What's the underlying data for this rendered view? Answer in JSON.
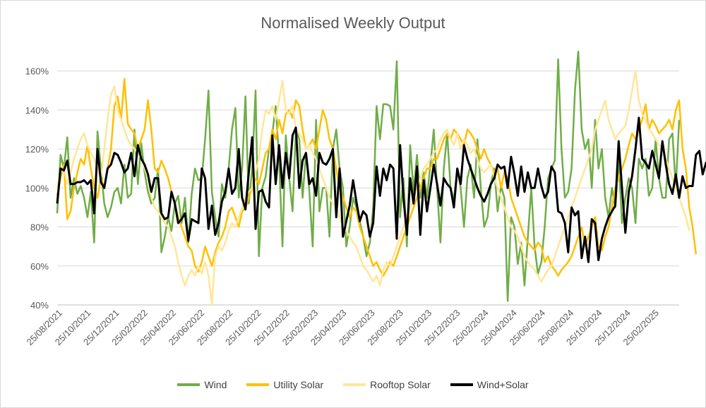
{
  "chart_data": {
    "type": "line",
    "title": "Normalised Weekly Output",
    "xlabel": "",
    "ylabel": "",
    "ylim": [
      0.4,
      1.7
    ],
    "ytick_labels": [
      "40%",
      "60%",
      "80%",
      "100%",
      "120%",
      "140%",
      "160%"
    ],
    "x_tick_labels": [
      "25/08/2021",
      "25/10/2021",
      "25/12/2021",
      "25/02/2022",
      "25/04/2022",
      "25/06/2022",
      "25/08/2022",
      "25/10/2022",
      "25/12/2022",
      "25/02/2023",
      "25/04/2023",
      "25/06/2023",
      "25/08/2023",
      "25/10/2023",
      "25/12/2023",
      "25/02/2024",
      "25/04/2024",
      "25/06/2024",
      "25/08/2024",
      "25/10/2024",
      "25/12/2024",
      "25/02/2025"
    ],
    "grid": "horizontal",
    "legend_position": "bottom",
    "series": [
      {
        "name": "Wind",
        "color": "#70ad47",
        "values": [
          0.87,
          1.17,
          1.1,
          1.26,
          0.95,
          1.05,
          0.97,
          1.01,
          0.95,
          0.85,
          0.98,
          0.72,
          1.29,
          1.1,
          0.92,
          0.85,
          0.9,
          0.98,
          1.0,
          0.92,
          1.12,
          0.95,
          0.97,
          1.3,
          1.02,
          1.23,
          1.08,
          0.98,
          0.92,
          0.95,
          1.1,
          0.67,
          0.75,
          0.85,
          0.78,
          0.92,
          0.96,
          0.82,
          0.95,
          0.72,
          0.97,
          1.1,
          1.04,
          1.05,
          1.25,
          1.5,
          0.98,
          0.85,
          0.75,
          1.02,
          0.95,
          1.1,
          1.3,
          1.41,
          0.95,
          1.1,
          1.47,
          0.92,
          1.1,
          1.5,
          0.65,
          1.0,
          1.06,
          1.2,
          1.28,
          1.42,
          1.15,
          0.7,
          1.27,
          1.05,
          0.88,
          1.3,
          1.25,
          0.95,
          1.18,
          0.98,
          0.7,
          1.35,
          0.88,
          1.0,
          1.0,
          0.75,
          1.2,
          1.3,
          1.1,
          1.0,
          0.7,
          0.8,
          0.95,
          0.9,
          0.83,
          0.75,
          0.65,
          0.72,
          0.9,
          1.42,
          1.25,
          1.43,
          1.43,
          1.42,
          1.3,
          1.65,
          0.85,
          1.05,
          0.7,
          1.22,
          0.98,
          1.17,
          0.95,
          1.08,
          0.95,
          1.12,
          1.3,
          1.0,
          0.72,
          1.1,
          1.28,
          1.0,
          0.94,
          1.1,
          1.0,
          0.8,
          1.05,
          1.12,
          0.95,
          1.25,
          1.0,
          0.8,
          0.85,
          1.02,
          1.1,
          0.88,
          1.01,
          0.95,
          0.42,
          0.85,
          0.8,
          0.61,
          0.72,
          0.5,
          0.75,
          1.0,
          0.7,
          0.56,
          0.62,
          0.8,
          1.05,
          1.1,
          1.14,
          1.66,
          1.2,
          0.95,
          0.98,
          1.1,
          1.5,
          1.7,
          1.3,
          1.2,
          1.25,
          1.0,
          1.35,
          1.1,
          1.2,
          0.95,
          0.85,
          1.0,
          0.9,
          1.15,
          0.82,
          0.95,
          1.05,
          1.0,
          0.82,
          1.15,
          1.1,
          1.15,
          0.96,
          1.0,
          1.25,
          1.05,
          0.95,
          0.95,
          1.25,
          1.28,
          1.0,
          1.35
        ]
      },
      {
        "name": "Utility Solar",
        "color": "#ffc000",
        "values": [
          0.96,
          1.05,
          1.12,
          0.84,
          0.88,
          1.0,
          1.08,
          1.15,
          1.12,
          1.22,
          1.1,
          1.0,
          0.95,
          1.05,
          1.0,
          1.1,
          1.2,
          1.42,
          1.47,
          1.35,
          1.56,
          1.33,
          1.3,
          1.28,
          1.2,
          1.25,
          1.3,
          1.45,
          1.3,
          1.1,
          1.08,
          1.14,
          1.1,
          1.05,
          0.98,
          0.92,
          0.85,
          0.8,
          0.75,
          0.7,
          0.68,
          0.6,
          0.57,
          0.62,
          0.7,
          0.65,
          0.6,
          0.67,
          0.72,
          0.75,
          0.8,
          0.88,
          0.9,
          0.85,
          0.8,
          0.88,
          0.9,
          0.95,
          1.0,
          1.05,
          1.02,
          1.1,
          1.18,
          1.2,
          1.3,
          1.25,
          1.35,
          1.28,
          1.38,
          1.4,
          1.36,
          1.45,
          1.42,
          1.3,
          1.2,
          1.22,
          1.25,
          1.2,
          1.3,
          1.4,
          1.35,
          1.25,
          1.2,
          1.1,
          1.0,
          0.95,
          0.9,
          0.85,
          0.9,
          0.88,
          0.8,
          0.75,
          0.7,
          0.65,
          0.6,
          0.62,
          0.58,
          0.55,
          0.58,
          0.62,
          0.6,
          0.65,
          0.7,
          0.75,
          0.8,
          0.85,
          0.9,
          0.95,
          1.0,
          1.05,
          1.1,
          1.1,
          1.15,
          1.15,
          1.2,
          1.25,
          1.28,
          1.25,
          1.3,
          1.28,
          1.25,
          1.22,
          1.3,
          1.28,
          1.25,
          1.2,
          1.15,
          1.2,
          1.15,
          1.12,
          1.08,
          1.1,
          1.0,
          1.08,
          1.05,
          0.95,
          0.9,
          0.85,
          0.8,
          0.75,
          0.72,
          0.7,
          0.68,
          0.72,
          0.7,
          0.62,
          0.65,
          0.6,
          0.58,
          0.55,
          0.58,
          0.6,
          0.62,
          0.65,
          0.7,
          0.75,
          0.8,
          0.7,
          0.75,
          0.8,
          0.85,
          0.7,
          0.68,
          0.75,
          0.8,
          0.9,
          1.0,
          1.05,
          1.1,
          1.15,
          1.22,
          1.28,
          1.25,
          1.3,
          1.35,
          1.43,
          1.3,
          1.35,
          1.32,
          1.28,
          1.3,
          1.32,
          1.35,
          1.3,
          1.4,
          1.45,
          1.2,
          1.1,
          0.9,
          0.8,
          0.66
        ]
      },
      {
        "name": "Rooftop Solar",
        "color": "#ffe699",
        "values": [
          1.0,
          1.08,
          1.1,
          1.02,
          1.08,
          1.15,
          1.2,
          1.25,
          1.28,
          1.22,
          1.18,
          1.15,
          1.1,
          1.05,
          1.2,
          1.35,
          1.48,
          1.52,
          1.4,
          1.35,
          1.3,
          1.25,
          1.22,
          1.2,
          1.18,
          1.15,
          1.1,
          1.05,
          0.95,
          0.9,
          0.88,
          0.85,
          0.82,
          0.8,
          0.75,
          0.7,
          0.62,
          0.55,
          0.5,
          0.55,
          0.58,
          0.55,
          0.6,
          0.56,
          0.62,
          0.55,
          0.4,
          0.65,
          0.7,
          0.68,
          0.72,
          0.78,
          0.82,
          0.8,
          0.85,
          0.9,
          0.95,
          0.98,
          1.0,
          1.08,
          1.15,
          1.3,
          1.4,
          1.38,
          1.42,
          1.35,
          1.45,
          1.55,
          1.4,
          1.38,
          1.42,
          1.3,
          1.28,
          1.25,
          1.2,
          1.22,
          1.18,
          1.15,
          1.1,
          1.05,
          1.0,
          0.95,
          0.92,
          0.9,
          0.85,
          0.8,
          0.78,
          0.75,
          0.72,
          0.7,
          0.65,
          0.6,
          0.58,
          0.55,
          0.52,
          0.55,
          0.5,
          0.58,
          0.62,
          0.6,
          0.65,
          0.7,
          0.75,
          0.8,
          0.85,
          0.9,
          0.95,
          1.0,
          1.05,
          1.1,
          1.12,
          1.15,
          1.18,
          1.2,
          1.25,
          1.28,
          1.3,
          1.25,
          1.22,
          1.28,
          1.2,
          1.25,
          1.22,
          1.18,
          1.2,
          1.15,
          1.1,
          1.08,
          1.1,
          1.12,
          1.05,
          1.0,
          0.95,
          0.9,
          0.85,
          0.8,
          0.78,
          0.75,
          0.7,
          0.65,
          0.62,
          0.6,
          0.58,
          0.55,
          0.52,
          0.55,
          0.58,
          0.6,
          0.65,
          0.7,
          0.75,
          0.8,
          0.85,
          0.9,
          0.95,
          1.0,
          1.05,
          1.1,
          1.15,
          1.2,
          1.3,
          1.35,
          1.4,
          1.45,
          1.35,
          1.3,
          1.25,
          1.28,
          1.3,
          1.32,
          1.4,
          1.5,
          1.6,
          1.45,
          1.38,
          1.35,
          1.3,
          1.28,
          1.25,
          1.22,
          1.2,
          1.15,
          1.1,
          1.05,
          1.0,
          0.95,
          0.9,
          0.85,
          0.78
        ]
      },
      {
        "name": "Wind+Solar",
        "color": "#000000",
        "values": [
          0.92,
          1.1,
          1.09,
          1.14,
          1.02,
          1.02,
          1.03,
          1.03,
          1.04,
          1.02,
          1.04,
          0.87,
          1.2,
          1.03,
          1.0,
          1.1,
          1.12,
          1.18,
          1.17,
          1.13,
          1.08,
          1.1,
          1.18,
          1.06,
          1.22,
          1.15,
          1.12,
          1.07,
          0.98,
          1.05,
          1.05,
          0.87,
          0.84,
          0.85,
          0.98,
          0.92,
          0.82,
          0.84,
          0.87,
          0.73,
          0.84,
          0.83,
          0.82,
          1.1,
          1.05,
          0.79,
          0.91,
          0.76,
          0.82,
          0.93,
          0.98,
          1.1,
          0.97,
          1.0,
          1.2,
          0.95,
          0.89,
          1.08,
          1.26,
          0.79,
          0.98,
          0.99,
          0.93,
          0.9,
          1.27,
          1.02,
          1.22,
          1.0,
          1.18,
          1.05,
          1.27,
          1.31,
          1.0,
          1.14,
          1.18,
          1.02,
          1.05,
          0.96,
          1.18,
          1.13,
          1.12,
          1.15,
          1.2,
          0.85,
          1.1,
          0.75,
          0.83,
          0.91,
          1.04,
          0.93,
          0.83,
          0.88,
          0.86,
          0.75,
          0.82,
          1.11,
          0.96,
          1.1,
          1.04,
          1.12,
          1.1,
          0.74,
          1.22,
          0.95,
          0.76,
          1.05,
          0.92,
          1.11,
          0.76,
          1.04,
          0.88,
          1.0,
          1.12,
          1.02,
          0.91,
          1.05,
          1.02,
          1.0,
          0.9,
          1.1,
          1.02,
          1.22,
          1.15,
          1.1,
          1.05,
          1.0,
          0.96,
          0.93,
          0.97,
          1.02,
          1.05,
          1.12,
          1.1,
          1.11,
          1.0,
          1.16,
          1.07,
          0.96,
          1.11,
          0.98,
          1.08,
          1.0,
          1.0,
          1.1,
          1.01,
          0.95,
          0.98,
          1.11,
          1.08,
          0.88,
          0.87,
          0.82,
          0.67,
          0.9,
          0.86,
          0.88,
          0.64,
          0.75,
          0.62,
          0.84,
          0.82,
          0.63,
          0.74,
          0.8,
          0.85,
          0.88,
          0.91,
          1.24,
          1.0,
          0.77,
          0.98,
          1.06,
          1.2,
          1.36,
          1.15,
          1.13,
          1.1,
          1.19,
          1.12,
          1.05,
          1.24,
          1.12,
          1.02,
          0.97,
          1.07,
          0.95,
          1.06,
          1.0,
          1.01,
          1.01,
          1.17,
          1.19,
          1.07,
          1.13,
          1.08,
          1.16,
          1.23,
          1.21,
          1.19,
          1.17,
          1.23,
          1.11,
          1.17,
          1.01,
          0.86,
          1.09
        ]
      }
    ]
  }
}
